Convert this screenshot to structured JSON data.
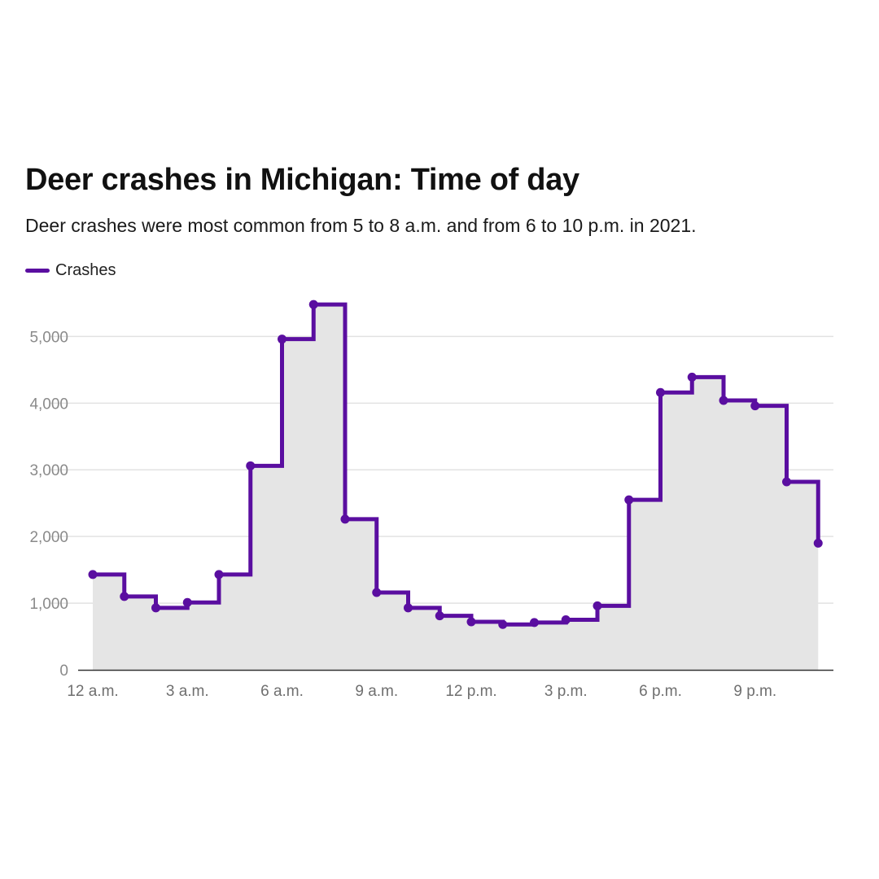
{
  "colors": {
    "line": "#5a0ea0",
    "area": "#e5e5e5",
    "grid": "#e2e2e2",
    "axis": "#333333"
  },
  "chart_data": {
    "type": "line",
    "title": "Deer crashes in Michigan: Time of day",
    "subtitle": "Deer crashes were most common from 5 to 8 a.m. and from 6 to 10 p.m. in 2021.",
    "line_style": "step",
    "area_fill": true,
    "grid": true,
    "legend_position": "top-left",
    "series": [
      {
        "name": "Crashes",
        "values": [
          1430,
          1100,
          930,
          1010,
          1430,
          3060,
          4960,
          5480,
          2260,
          1160,
          930,
          810,
          720,
          680,
          710,
          750,
          960,
          2550,
          4160,
          4390,
          4040,
          3960,
          2820,
          1900
        ]
      }
    ],
    "x": [
      0,
      1,
      2,
      3,
      4,
      5,
      6,
      7,
      8,
      9,
      10,
      11,
      12,
      13,
      14,
      15,
      16,
      17,
      18,
      19,
      20,
      21,
      22,
      23
    ],
    "x_ticks": [
      {
        "hour": 0,
        "label": "12 a.m."
      },
      {
        "hour": 3,
        "label": "3 a.m."
      },
      {
        "hour": 6,
        "label": "6 a.m."
      },
      {
        "hour": 9,
        "label": "9 a.m."
      },
      {
        "hour": 12,
        "label": "12 p.m."
      },
      {
        "hour": 15,
        "label": "3 p.m."
      },
      {
        "hour": 18,
        "label": "6 p.m."
      },
      {
        "hour": 21,
        "label": "9 p.m."
      }
    ],
    "y_ticks": [
      {
        "value": 0,
        "label": "0"
      },
      {
        "value": 1000,
        "label": "1,000"
      },
      {
        "value": 2000,
        "label": "2,000"
      },
      {
        "value": 3000,
        "label": "3,000"
      },
      {
        "value": 4000,
        "label": "4,000"
      },
      {
        "value": 5000,
        "label": "5,000"
      }
    ],
    "ylim": [
      0,
      5500
    ]
  }
}
